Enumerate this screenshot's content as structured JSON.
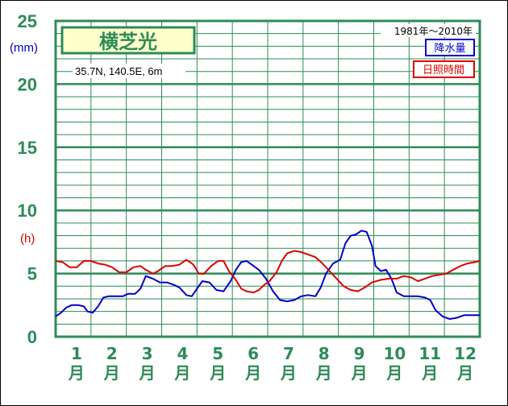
{
  "chart_data": {
    "type": "line",
    "title": "横芝光",
    "location": "35.7N,  140.5E,  6m",
    "period": "1981年〜2010年",
    "ylim": [
      0,
      25
    ],
    "ytick_labels": [
      "0",
      "5",
      "10",
      "15",
      "20",
      "25"
    ],
    "y_units": {
      "precip": "(mm)",
      "sun": "(h)"
    },
    "categories": [
      "1",
      "2",
      "3",
      "4",
      "5",
      "6",
      "7",
      "8",
      "9",
      "10",
      "11",
      "12"
    ],
    "month_suffix": "月",
    "x_range": [
      0.5,
      12.5
    ],
    "series": [
      {
        "name": "降水量",
        "color": "#0000cc",
        "points": [
          [
            0.5,
            1.6
          ],
          [
            0.65,
            1.9
          ],
          [
            0.8,
            2.3
          ],
          [
            0.95,
            2.5
          ],
          [
            1.15,
            2.5
          ],
          [
            1.3,
            2.4
          ],
          [
            1.4,
            2.0
          ],
          [
            1.55,
            1.9
          ],
          [
            1.7,
            2.4
          ],
          [
            1.85,
            3.1
          ],
          [
            2.0,
            3.2
          ],
          [
            2.2,
            3.2
          ],
          [
            2.4,
            3.2
          ],
          [
            2.55,
            3.4
          ],
          [
            2.75,
            3.4
          ],
          [
            2.9,
            3.8
          ],
          [
            3.05,
            4.8
          ],
          [
            3.25,
            4.6
          ],
          [
            3.45,
            4.3
          ],
          [
            3.65,
            4.3
          ],
          [
            3.85,
            4.1
          ],
          [
            4.0,
            3.9
          ],
          [
            4.2,
            3.3
          ],
          [
            4.35,
            3.2
          ],
          [
            4.5,
            3.8
          ],
          [
            4.65,
            4.4
          ],
          [
            4.85,
            4.3
          ],
          [
            5.05,
            3.7
          ],
          [
            5.25,
            3.6
          ],
          [
            5.45,
            4.4
          ],
          [
            5.6,
            5.3
          ],
          [
            5.75,
            5.9
          ],
          [
            5.9,
            6.0
          ],
          [
            6.05,
            5.7
          ],
          [
            6.25,
            5.3
          ],
          [
            6.45,
            4.6
          ],
          [
            6.65,
            3.6
          ],
          [
            6.85,
            2.9
          ],
          [
            7.05,
            2.8
          ],
          [
            7.25,
            2.9
          ],
          [
            7.45,
            3.2
          ],
          [
            7.65,
            3.3
          ],
          [
            7.85,
            3.2
          ],
          [
            8.0,
            3.9
          ],
          [
            8.15,
            5.0
          ],
          [
            8.35,
            5.8
          ],
          [
            8.55,
            6.1
          ],
          [
            8.7,
            7.4
          ],
          [
            8.85,
            8.0
          ],
          [
            9.0,
            8.1
          ],
          [
            9.15,
            8.4
          ],
          [
            9.3,
            8.3
          ],
          [
            9.45,
            7.2
          ],
          [
            9.55,
            5.6
          ],
          [
            9.7,
            5.2
          ],
          [
            9.85,
            5.3
          ],
          [
            10.0,
            4.6
          ],
          [
            10.15,
            3.5
          ],
          [
            10.35,
            3.2
          ],
          [
            10.55,
            3.2
          ],
          [
            10.75,
            3.2
          ],
          [
            10.95,
            3.1
          ],
          [
            11.1,
            2.9
          ],
          [
            11.25,
            2.1
          ],
          [
            11.45,
            1.6
          ],
          [
            11.65,
            1.4
          ],
          [
            11.85,
            1.5
          ],
          [
            12.05,
            1.7
          ],
          [
            12.5,
            1.7
          ]
        ]
      },
      {
        "name": "日照時間",
        "color": "#dd0000",
        "points": [
          [
            0.5,
            6.0
          ],
          [
            0.7,
            5.9
          ],
          [
            0.9,
            5.5
          ],
          [
            1.1,
            5.5
          ],
          [
            1.3,
            6.0
          ],
          [
            1.5,
            6.0
          ],
          [
            1.7,
            5.8
          ],
          [
            1.9,
            5.7
          ],
          [
            2.1,
            5.5
          ],
          [
            2.3,
            5.1
          ],
          [
            2.5,
            5.1
          ],
          [
            2.7,
            5.5
          ],
          [
            2.9,
            5.6
          ],
          [
            3.05,
            5.3
          ],
          [
            3.25,
            5.0
          ],
          [
            3.4,
            5.2
          ],
          [
            3.6,
            5.6
          ],
          [
            3.8,
            5.6
          ],
          [
            4.0,
            5.7
          ],
          [
            4.2,
            6.1
          ],
          [
            4.4,
            5.7
          ],
          [
            4.55,
            5.0
          ],
          [
            4.7,
            5.0
          ],
          [
            4.9,
            5.6
          ],
          [
            5.1,
            6.0
          ],
          [
            5.25,
            6.0
          ],
          [
            5.4,
            5.2
          ],
          [
            5.6,
            4.5
          ],
          [
            5.75,
            3.8
          ],
          [
            5.9,
            3.6
          ],
          [
            6.1,
            3.5
          ],
          [
            6.25,
            3.7
          ],
          [
            6.4,
            4.1
          ],
          [
            6.55,
            4.4
          ],
          [
            6.75,
            5.1
          ],
          [
            6.9,
            6.0
          ],
          [
            7.05,
            6.6
          ],
          [
            7.25,
            6.8
          ],
          [
            7.45,
            6.7
          ],
          [
            7.65,
            6.5
          ],
          [
            7.85,
            6.3
          ],
          [
            8.05,
            5.8
          ],
          [
            8.25,
            5.2
          ],
          [
            8.45,
            4.6
          ],
          [
            8.65,
            4.0
          ],
          [
            8.85,
            3.7
          ],
          [
            9.05,
            3.6
          ],
          [
            9.25,
            3.9
          ],
          [
            9.45,
            4.3
          ],
          [
            9.7,
            4.5
          ],
          [
            9.95,
            4.6
          ],
          [
            10.15,
            4.6
          ],
          [
            10.35,
            4.8
          ],
          [
            10.55,
            4.7
          ],
          [
            10.75,
            4.4
          ],
          [
            10.95,
            4.6
          ],
          [
            11.15,
            4.8
          ],
          [
            11.35,
            4.9
          ],
          [
            11.55,
            5.0
          ],
          [
            11.75,
            5.3
          ],
          [
            11.95,
            5.6
          ],
          [
            12.15,
            5.8
          ],
          [
            12.35,
            5.9
          ],
          [
            12.5,
            6.0
          ]
        ]
      }
    ],
    "colors": {
      "grid": "#2e8b57",
      "label_box_fill": "#ffffcc"
    }
  }
}
